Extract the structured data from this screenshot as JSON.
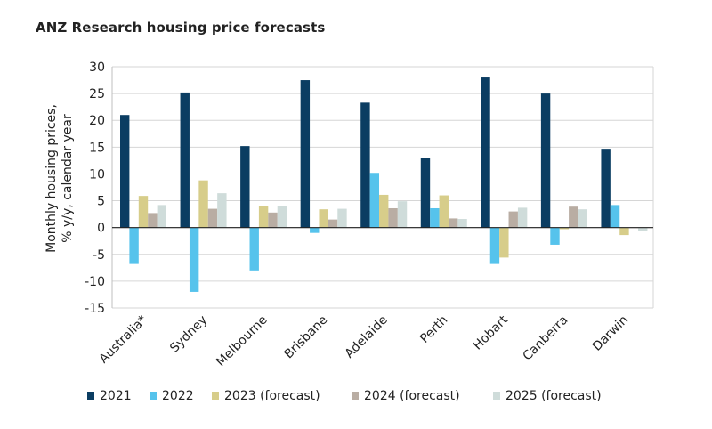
{
  "title": "ANZ Research housing price forecasts",
  "chart_data": {
    "type": "bar",
    "title": "ANZ Research housing price forecasts",
    "xlabel": "",
    "ylabel": [
      "Monthly housing prices,",
      "% y/y, calendar year"
    ],
    "ylim": [
      -15,
      30
    ],
    "yticks": [
      -15,
      -10,
      -5,
      0,
      5,
      10,
      15,
      20,
      25,
      30
    ],
    "grid": true,
    "legend_position": "bottom",
    "categories": [
      "Australia*",
      "Sydney",
      "Melbourne",
      "Brisbane",
      "Adelaide",
      "Perth",
      "Hobart",
      "Canberra",
      "Darwin"
    ],
    "series": [
      {
        "name": "2021",
        "color": "#0b3d62",
        "values": [
          21.0,
          25.2,
          15.2,
          27.5,
          23.3,
          13.0,
          28.0,
          25.0,
          14.7
        ]
      },
      {
        "name": "2022",
        "color": "#56c3ec",
        "values": [
          -6.8,
          -12.0,
          -8.0,
          -1.0,
          10.2,
          3.6,
          -6.8,
          -3.2,
          4.2
        ]
      },
      {
        "name": "2023 (forecast)",
        "color": "#d7cd8a",
        "values": [
          5.9,
          8.8,
          4.0,
          3.4,
          6.1,
          6.0,
          -5.6,
          -0.3,
          -1.4
        ]
      },
      {
        "name": "2024 (forecast)",
        "color": "#b9ada3",
        "values": [
          2.7,
          3.5,
          2.8,
          1.5,
          3.6,
          1.7,
          3.0,
          3.9,
          0.0
        ]
      },
      {
        "name": "2025 (forecast)",
        "color": "#cfdcda",
        "values": [
          4.2,
          6.4,
          4.0,
          3.5,
          4.9,
          1.6,
          3.7,
          3.4,
          -0.6
        ]
      }
    ]
  }
}
